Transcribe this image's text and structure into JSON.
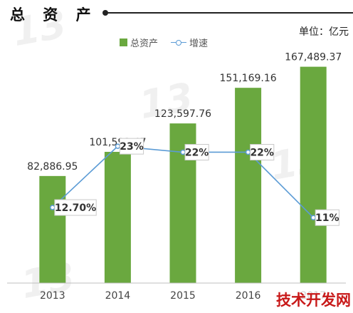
{
  "header": {
    "title": "总 资 产",
    "unit": "单位：亿元"
  },
  "legend": {
    "bars_label": "总资产",
    "line_label": "增速"
  },
  "watermark": {
    "text": "13"
  },
  "site_mark": {
    "text": "技术开发网"
  },
  "colors": {
    "bar": "#6aa83f",
    "line": "#5b9bd5",
    "axis": "#bfbfbf"
  },
  "chart_data": {
    "type": "bar",
    "categories": [
      "2013",
      "2014",
      "2015",
      "2016",
      "2017"
    ],
    "series": [
      {
        "name": "总资产",
        "type": "bar",
        "values": [
          82886.95,
          101591.47,
          123597.76,
          151169.16,
          167489.37
        ],
        "labels": [
          "82,886.95",
          "101,591.47",
          "123,597.76",
          "151,169.16",
          "167,489.37"
        ]
      },
      {
        "name": "增速",
        "type": "line",
        "values": [
          12.7,
          23,
          22,
          22,
          11
        ],
        "labels": [
          "12.70%",
          "23%",
          "22%",
          "22%",
          "11%"
        ]
      }
    ],
    "xlabel": "",
    "ylabel": "",
    "ylim": [
      0,
      175000
    ],
    "y2lim": [
      0,
      38
    ],
    "grid": false,
    "legend_position": "top"
  }
}
